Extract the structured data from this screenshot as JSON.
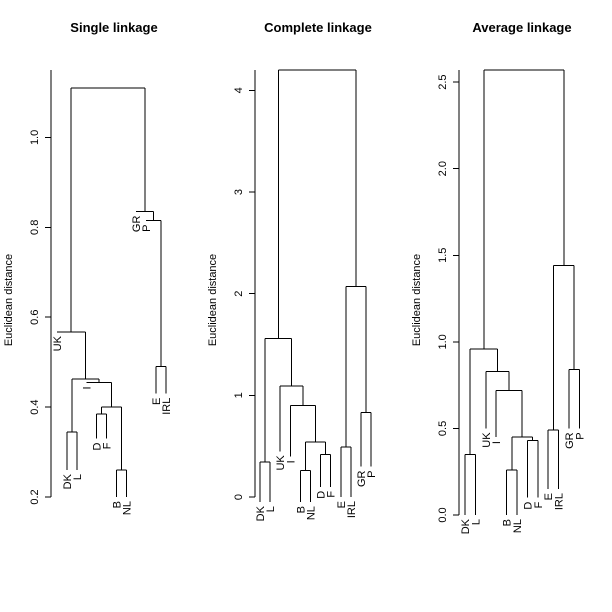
{
  "chart_data": [
    {
      "type": "dendrogram",
      "title": "Single linkage",
      "ylabel": "Euclidean distance",
      "ylim": [
        0.2,
        1.15
      ],
      "yticks": [
        {
          "value": 0.2,
          "label": "0.2"
        },
        {
          "value": 0.4,
          "label": "0.4"
        },
        {
          "value": 0.6,
          "label": "0.6"
        },
        {
          "value": 0.8,
          "label": "0.8"
        },
        {
          "value": 1.0,
          "label": "1.0"
        }
      ],
      "leaves": [
        "UK",
        "DK",
        "L",
        "I",
        "D",
        "F",
        "B",
        "NL",
        "GR",
        "P",
        "E",
        "IRL"
      ],
      "merges": [
        {
          "left": "B",
          "right": "NL",
          "height": 0.26
        },
        {
          "left": "DK",
          "right": "L",
          "height": 0.345
        },
        {
          "left": "D",
          "right": "F",
          "height": 0.385
        },
        {
          "left": "B+NL",
          "right": "D+F",
          "height": 0.4
        },
        {
          "left": "I",
          "right": "D+F+B+NL",
          "height": 0.455
        },
        {
          "left": "DK+L",
          "right": "I+D+F+B+NL",
          "height": 0.462
        },
        {
          "left": "E",
          "right": "IRL",
          "height": 0.49
        },
        {
          "left": "UK",
          "right": "DK..NL",
          "height": 0.567
        },
        {
          "left": "P",
          "right": "E+IRL",
          "height": 0.815
        },
        {
          "left": "GR",
          "right": "P+E+IRL",
          "height": 0.835
        },
        {
          "left": "UK..NL",
          "right": "GR..IRL",
          "height": 1.11
        }
      ],
      "leaf_heights": {
        "UK": 0.567,
        "DK": 0.26,
        "L": 0.26,
        "I": 0.455,
        "D": 0.33,
        "F": 0.33,
        "B": 0.2,
        "NL": 0.2,
        "GR": 0.835,
        "P": 0.815,
        "E": 0.43,
        "IRL": 0.43
      }
    },
    {
      "type": "dendrogram",
      "title": "Complete linkage",
      "ylabel": "Euclidean distance",
      "ylim": [
        0,
        4.2
      ],
      "yticks": [
        {
          "value": 0,
          "label": "0"
        },
        {
          "value": 1,
          "label": "1"
        },
        {
          "value": 2,
          "label": "2"
        },
        {
          "value": 3,
          "label": "3"
        },
        {
          "value": 4,
          "label": "4"
        }
      ],
      "leaves": [
        "DK",
        "L",
        "UK",
        "I",
        "B",
        "NL",
        "D",
        "F",
        "E",
        "IRL",
        "GR",
        "P"
      ],
      "merges": [
        {
          "left": "B",
          "right": "NL",
          "height": 0.26
        },
        {
          "left": "DK",
          "right": "L",
          "height": 0.345
        },
        {
          "left": "D",
          "right": "F",
          "height": 0.42
        },
        {
          "left": "E",
          "right": "IRL",
          "height": 0.49
        },
        {
          "left": "B+NL",
          "right": "D+F",
          "height": 0.54
        },
        {
          "left": "GR",
          "right": "P",
          "height": 0.83
        },
        {
          "left": "I",
          "right": "B+NL+D+F",
          "height": 0.9
        },
        {
          "left": "UK",
          "right": "I..F",
          "height": 1.09
        },
        {
          "left": "DK+L",
          "right": "UK..F",
          "height": 1.56
        },
        {
          "left": "E+IRL",
          "right": "GR+P",
          "height": 2.07
        },
        {
          "left": "DK..F",
          "right": "E..P",
          "height": 4.2
        }
      ],
      "leaf_heights": {
        "DK": -0.05,
        "L": -0.05,
        "UK": 0.45,
        "I": 0.4,
        "B": -0.05,
        "NL": -0.05,
        "D": 0.1,
        "F": 0.1,
        "E": 0.0,
        "IRL": 0.0,
        "GR": 0.3,
        "P": 0.3
      }
    },
    {
      "type": "dendrogram",
      "title": "Average linkage",
      "ylabel": "Euclidean distance",
      "ylim": [
        0,
        2.57
      ],
      "yticks": [
        {
          "value": 0.0,
          "label": "0.0"
        },
        {
          "value": 0.5,
          "label": "0.5"
        },
        {
          "value": 1.0,
          "label": "1.0"
        },
        {
          "value": 1.5,
          "label": "1.5"
        },
        {
          "value": 2.0,
          "label": "2.0"
        },
        {
          "value": 2.5,
          "label": "2.5"
        }
      ],
      "leaves": [
        "DK",
        "L",
        "UK",
        "I",
        "B",
        "NL",
        "D",
        "F",
        "E",
        "IRL",
        "GR",
        "P"
      ],
      "merges": [
        {
          "left": "B",
          "right": "NL",
          "height": 0.26
        },
        {
          "left": "DK",
          "right": "L",
          "height": 0.35
        },
        {
          "left": "D",
          "right": "F",
          "height": 0.43
        },
        {
          "left": "B+NL",
          "right": "D+F",
          "height": 0.45
        },
        {
          "left": "E",
          "right": "IRL",
          "height": 0.49
        },
        {
          "left": "I",
          "right": "B+NL+D+F",
          "height": 0.72
        },
        {
          "left": "GR",
          "right": "P",
          "height": 0.84
        },
        {
          "left": "UK",
          "right": "I..F",
          "height": 0.83
        },
        {
          "left": "DK+L",
          "right": "UK..F",
          "height": 0.96
        },
        {
          "left": "E+IRL",
          "right": "GR+P",
          "height": 1.44
        },
        {
          "left": "DK..F",
          "right": "E..P",
          "height": 2.57
        }
      ],
      "leaf_heights": {
        "DK": 0.0,
        "L": 0.0,
        "UK": 0.5,
        "I": 0.45,
        "B": 0.0,
        "NL": 0.0,
        "D": 0.1,
        "F": 0.1,
        "E": 0.15,
        "IRL": 0.15,
        "GR": 0.5,
        "P": 0.5
      }
    }
  ]
}
